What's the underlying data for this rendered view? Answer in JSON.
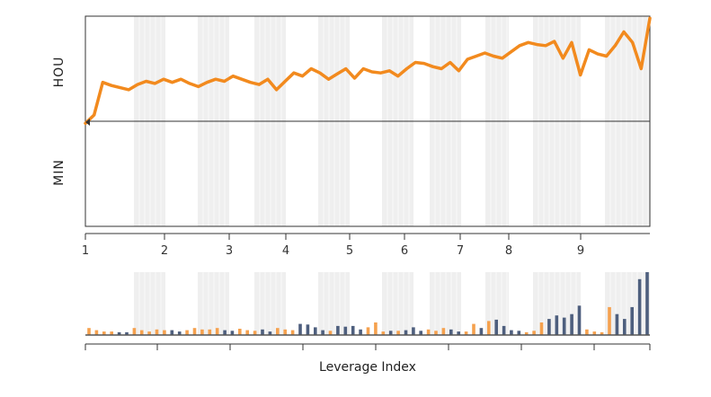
{
  "chart_data": {
    "type": "line",
    "xlabel": "Leverage Index",
    "ylabel_top": "HOU",
    "ylabel_bottom": "MIN",
    "x_ticks": [
      "1",
      "2",
      "3",
      "4",
      "5",
      "6",
      "7",
      "8",
      "9"
    ],
    "line_color": "#f28a1e",
    "bar_color_a": "#f5a14e",
    "bar_color_b": "#4e5f7e",
    "shaded_color": "#efefef",
    "series": [
      {
        "values": [
          -0.02,
          0.06,
          0.37,
          0.34,
          0.32,
          0.3,
          0.35,
          0.38,
          0.36,
          0.4,
          0.37,
          0.4,
          0.36,
          0.33,
          0.37,
          0.4,
          0.38,
          0.43,
          0.4,
          0.37,
          0.35,
          0.4,
          0.3,
          0.38,
          0.46,
          0.43,
          0.5,
          0.46,
          0.4,
          0.45,
          0.5,
          0.41,
          0.5,
          0.47,
          0.46,
          0.48,
          0.43,
          0.5,
          0.56,
          0.55,
          0.52,
          0.5,
          0.56,
          0.48,
          0.59,
          0.62,
          0.65,
          0.62,
          0.6,
          0.66,
          0.72,
          0.75,
          0.73,
          0.72,
          0.76,
          0.6,
          0.75,
          0.44,
          0.68,
          0.64,
          0.62,
          0.72,
          0.85,
          0.75,
          0.5,
          0.98
        ]
      }
    ],
    "bars": [
      1.0,
      0.7,
      0.5,
      0.5,
      0.4,
      0.4,
      1.0,
      0.7,
      0.5,
      0.8,
      0.7,
      0.7,
      0.5,
      0.7,
      1.0,
      0.8,
      0.8,
      1.0,
      0.7,
      0.6,
      0.9,
      0.7,
      0.6,
      0.8,
      0.5,
      1.0,
      0.8,
      0.7,
      1.6,
      1.5,
      1.1,
      0.7,
      0.6,
      1.3,
      1.2,
      1.3,
      0.8,
      1.1,
      1.8,
      0.5,
      0.6,
      0.6,
      0.7,
      1.1,
      0.6,
      0.8,
      0.6,
      1.0,
      0.8,
      0.5,
      0.5,
      1.6,
      1.0,
      2.0,
      2.2,
      1.3,
      0.7,
      0.6,
      0.4,
      0.6,
      1.8,
      2.3,
      2.8,
      2.5,
      3.0,
      4.2,
      0.8,
      0.5,
      0.4,
      4.0,
      3.0,
      2.3,
      4.0,
      8.0,
      9.0
    ]
  }
}
